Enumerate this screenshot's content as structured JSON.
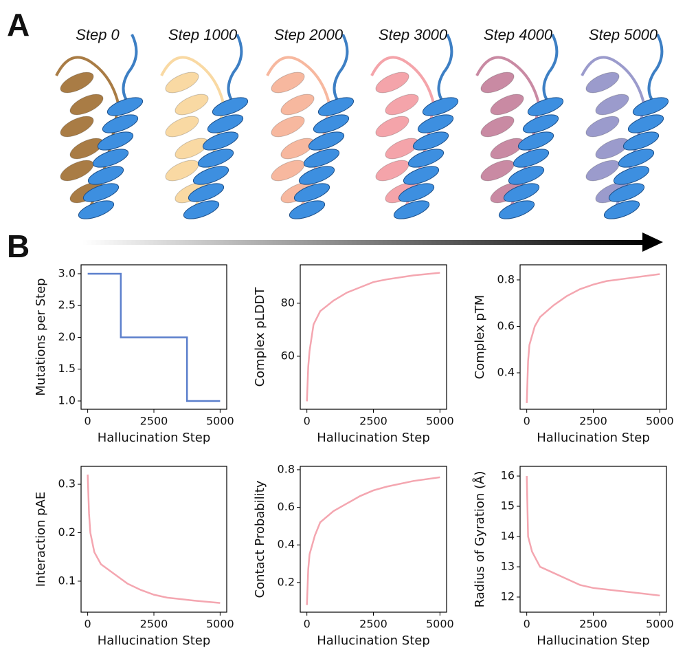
{
  "panel_labels": [
    "A",
    "B"
  ],
  "structure_labels": [
    "Step 0",
    "Step 1000",
    "Step 2000",
    "Step 3000",
    "Step 4000",
    "Step 5000"
  ],
  "chart_data": [
    {
      "type": "line",
      "xlabel": "Hallucination Step",
      "ylabel": "Mutations per Step",
      "color": "#5b7fcc",
      "x": [
        0,
        1250,
        1250,
        3750,
        3750,
        5000
      ],
      "values": [
        3,
        3,
        2,
        2,
        1,
        1
      ],
      "xlim": [
        -250,
        5250
      ],
      "ylim": [
        0.87,
        3.14
      ],
      "xticks": [
        0,
        2500,
        5000
      ],
      "yticks": [
        {
          "value": 1,
          "label": "1.0"
        },
        1.5,
        {
          "value": 2,
          "label": "2.0"
        },
        2.5,
        {
          "value": 3,
          "label": "3.0"
        }
      ]
    },
    {
      "type": "line",
      "xlabel": "Hallucination Step",
      "ylabel": "Complex pLDDT",
      "color": "#f4a6b0",
      "x": [
        0,
        50,
        100,
        250,
        500,
        1000,
        1500,
        2000,
        2500,
        3000,
        4000,
        5000
      ],
      "values": [
        43,
        56,
        62,
        72,
        77,
        81,
        84,
        86,
        88,
        89,
        90.5,
        91.5
      ],
      "xlim": [
        -250,
        5250
      ],
      "ylim": [
        40,
        94.5
      ],
      "xticks": [
        0,
        2500,
        5000
      ],
      "yticks": [
        60,
        80
      ]
    },
    {
      "type": "line",
      "xlabel": "Hallucination Step",
      "ylabel": "Complex pTM",
      "color": "#f4a6b0",
      "x": [
        0,
        50,
        100,
        300,
        500,
        1000,
        1500,
        2000,
        2500,
        3000,
        4000,
        5000
      ],
      "values": [
        0.27,
        0.45,
        0.52,
        0.6,
        0.64,
        0.69,
        0.73,
        0.76,
        0.78,
        0.795,
        0.81,
        0.825
      ],
      "xlim": [
        -250,
        5250
      ],
      "ylim": [
        0.243,
        0.865
      ],
      "xticks": [
        0,
        2500,
        5000
      ],
      "yticks": [
        0.4,
        0.6,
        0.8
      ]
    },
    {
      "type": "line",
      "xlabel": "Hallucination Step",
      "ylabel": "Interaction pAE",
      "color": "#f4a6b0",
      "x": [
        0,
        50,
        100,
        250,
        500,
        1000,
        1500,
        2000,
        2500,
        3000,
        4000,
        5000
      ],
      "values": [
        0.32,
        0.24,
        0.2,
        0.16,
        0.135,
        0.115,
        0.095,
        0.082,
        0.072,
        0.066,
        0.06,
        0.055
      ],
      "xlim": [
        -250,
        5250
      ],
      "ylim": [
        0.036,
        0.337
      ],
      "xticks": [
        0,
        2500,
        5000
      ],
      "yticks": [
        0.1,
        0.2,
        0.3
      ]
    },
    {
      "type": "line",
      "xlabel": "Hallucination Step",
      "ylabel": "Contact Probability",
      "color": "#f4a6b0",
      "x": [
        0,
        50,
        100,
        300,
        500,
        1000,
        1500,
        2000,
        2500,
        3000,
        4000,
        5000
      ],
      "values": [
        0.08,
        0.27,
        0.35,
        0.45,
        0.52,
        0.58,
        0.62,
        0.66,
        0.69,
        0.71,
        0.74,
        0.76
      ],
      "xlim": [
        -250,
        5250
      ],
      "ylim": [
        0.042,
        0.818
      ],
      "xticks": [
        0,
        2500,
        5000
      ],
      "yticks": [
        0.2,
        0.4,
        0.6,
        0.8
      ]
    },
    {
      "type": "line",
      "xlabel": "Hallucination Step",
      "ylabel": "Radius of Gyration (Å)",
      "color": "#f4a6b0",
      "x": [
        0,
        50,
        200,
        500,
        1000,
        1500,
        2000,
        2500,
        3000,
        4000,
        5000
      ],
      "values": [
        16,
        14,
        13.5,
        13,
        12.8,
        12.6,
        12.4,
        12.3,
        12.25,
        12.15,
        12.05
      ],
      "xlim": [
        -250,
        5250
      ],
      "ylim": [
        11.5,
        16.32
      ],
      "xticks": [
        0,
        2500,
        5000
      ],
      "yticks": [
        12,
        13,
        14,
        15,
        16
      ]
    }
  ]
}
